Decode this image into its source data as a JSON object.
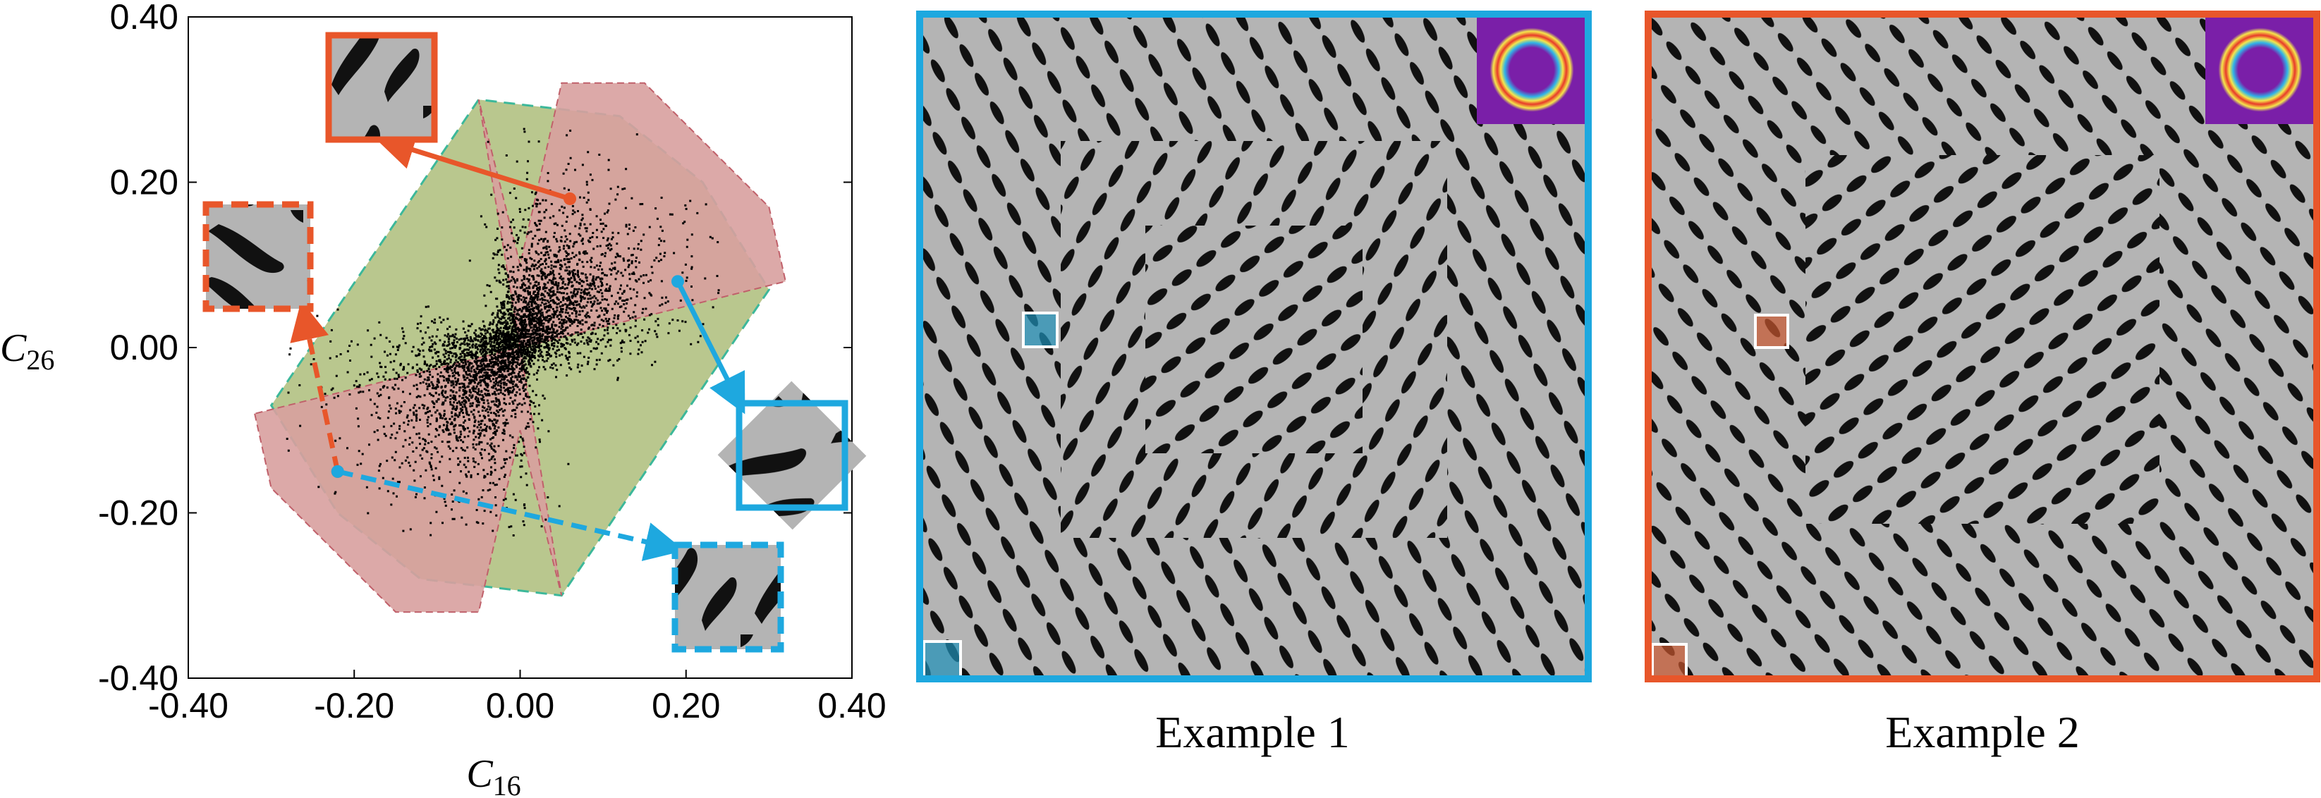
{
  "chart_data": {
    "type": "scatter",
    "title": "",
    "xlabel": {
      "main": "C",
      "sub": "16"
    },
    "ylabel": {
      "main": "C",
      "sub": "26"
    },
    "xlim": [
      -0.4,
      0.4
    ],
    "ylim": [
      -0.4,
      0.4
    ],
    "xticks": [
      "-0.40",
      "-0.20",
      "0.00",
      "0.20",
      "0.40"
    ],
    "yticks": [
      "-0.40",
      "-0.20",
      "0.00",
      "0.20",
      "0.40"
    ],
    "grid": false,
    "legend": "none",
    "point_cloud": {
      "description_axis": "elongated cloud along the diagonal, narrow near origin",
      "center": [
        0.0,
        0.0
      ],
      "extent_x": [
        -0.28,
        0.22
      ],
      "extent_y": [
        -0.22,
        0.26
      ]
    },
    "regions": {
      "green_hull": [
        [
          -0.3,
          -0.07
        ],
        [
          -0.22,
          -0.2
        ],
        [
          -0.12,
          -0.28
        ],
        [
          0.05,
          -0.3
        ],
        [
          0.3,
          0.07
        ],
        [
          0.22,
          0.2
        ],
        [
          0.12,
          0.28
        ],
        [
          -0.05,
          0.3
        ]
      ],
      "red_hull": [
        [
          -0.32,
          -0.08
        ],
        [
          -0.3,
          -0.17
        ],
        [
          -0.15,
          -0.32
        ],
        [
          -0.05,
          -0.32
        ],
        [
          0.0,
          -0.1
        ],
        [
          0.05,
          -0.3
        ],
        [
          0.0,
          0.0
        ],
        [
          0.32,
          0.08
        ],
        [
          0.3,
          0.17
        ],
        [
          0.15,
          0.32
        ],
        [
          0.05,
          0.32
        ],
        [
          0.0,
          0.1
        ],
        [
          -0.05,
          0.3
        ],
        [
          0.0,
          0.0
        ]
      ]
    },
    "markers": [
      {
        "name": "orange-solid",
        "from": [
          0.06,
          0.18
        ],
        "color": "#E8562A",
        "style": "solid"
      },
      {
        "name": "orange-dashed",
        "from": [
          -0.22,
          -0.15
        ],
        "color": "#E8562A",
        "style": "dashed"
      },
      {
        "name": "blue-solid",
        "from": [
          0.19,
          0.08
        ],
        "color": "#1EA8DF",
        "style": "solid"
      },
      {
        "name": "blue-dashed",
        "from": [
          -0.22,
          -0.15
        ],
        "color": "#1EA8DF",
        "style": "dashed"
      }
    ]
  },
  "examples": [
    {
      "caption": "Example 1",
      "border_color": "#1EA8DF",
      "highlight_color": "#1E90B8"
    },
    {
      "caption": "Example 2",
      "border_color": "#E8562A",
      "highlight_color": "#C8552E"
    }
  ],
  "colors": {
    "orange": "#E8562A",
    "blue": "#1EA8DF",
    "green_region": "#B9C78E",
    "red_region": "#D8A09E",
    "pattern_gray": "#B4B4B4",
    "pattern_ink": "#111111",
    "inset_purple": "#7A1FA8"
  }
}
